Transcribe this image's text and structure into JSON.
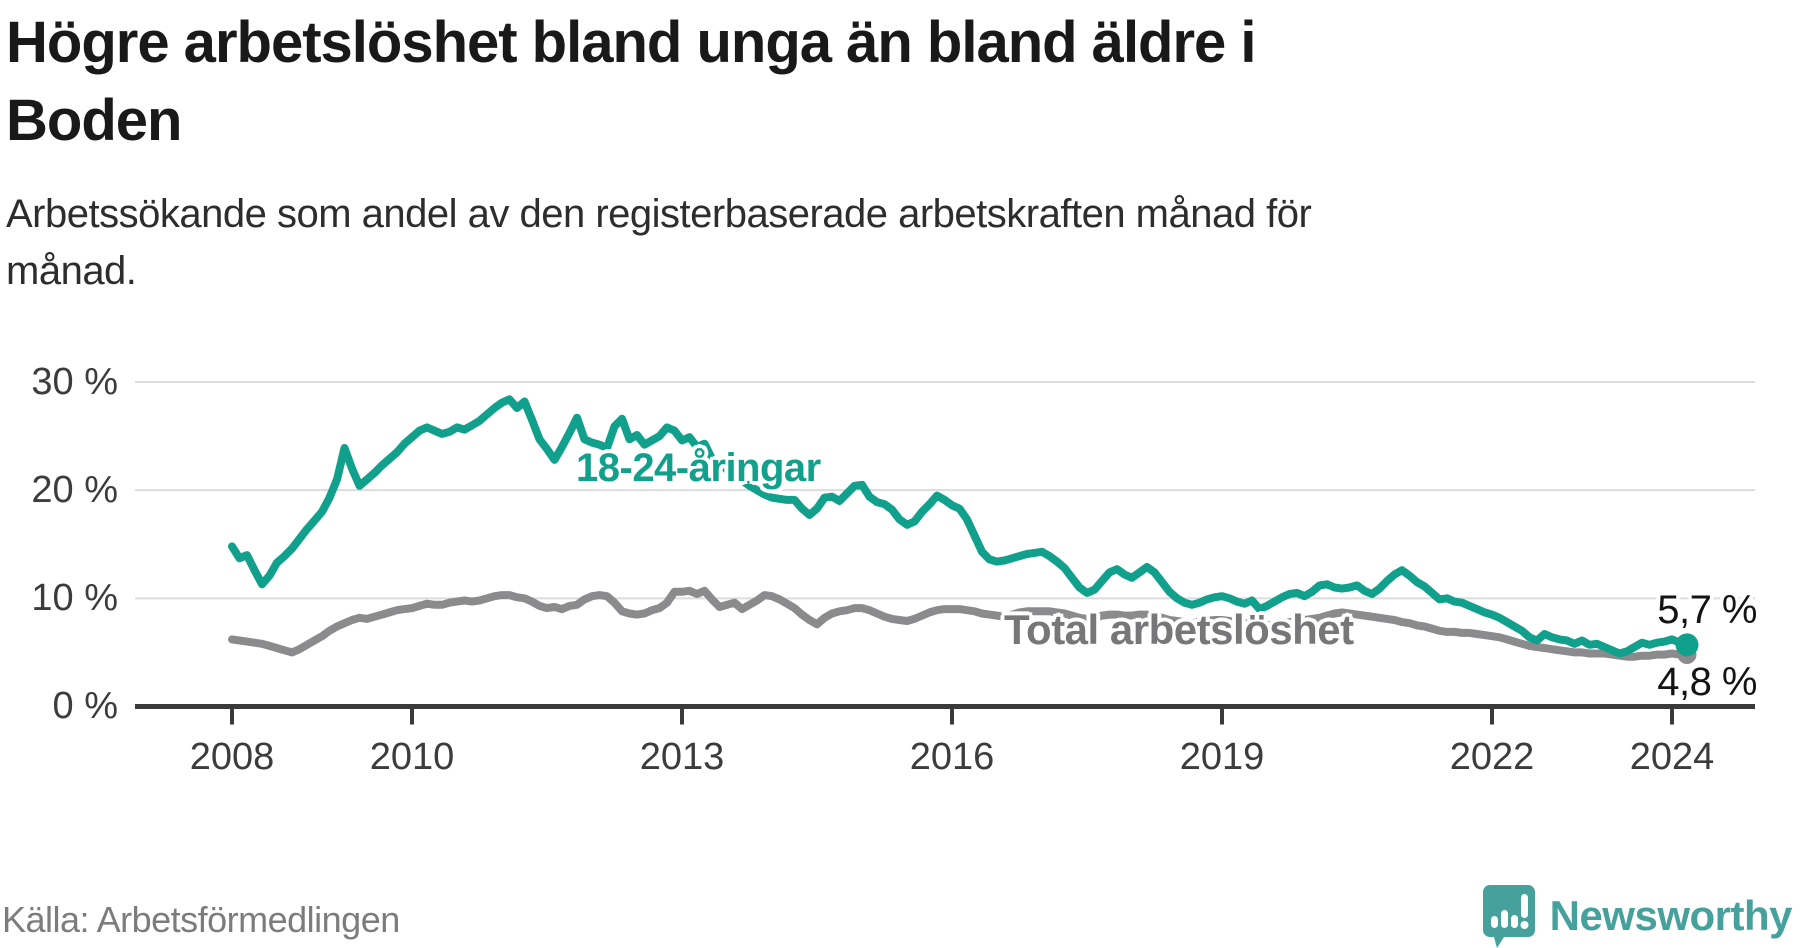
{
  "header": {
    "title": "Högre arbetslöshet bland unga än bland äldre i\nBoden",
    "subtitle": "Arbetssökande som andel av den registerbaserade arbetskraften månad för\nmånad."
  },
  "footer": {
    "source": "Källa: Arbetsförmedlingen",
    "brand": "Newsworthy"
  },
  "colors": {
    "youth_line": "#10a08c",
    "total_line": "#8b8b8d",
    "axis": "#3a3a3a",
    "gridline": "#dcdcdc",
    "brand_teal": "#46a19c"
  },
  "chart_data": {
    "type": "line",
    "title": "Högre arbetslöshet bland unga än bland äldre i Boden",
    "subtitle": "Arbetssökande som andel av den registerbaserade arbetskraften månad för månad.",
    "unit": "%",
    "frequency": "monthly",
    "x_start": "2008-01",
    "x_end": "2024-03",
    "ylim": [
      0,
      32
    ],
    "grid": "horizontal",
    "y_ticks": [
      {
        "label": "30 %",
        "value": 30
      },
      {
        "label": "20 %",
        "value": 20
      },
      {
        "label": "10 %",
        "value": 10
      },
      {
        "label": "0 %",
        "value": 0
      }
    ],
    "x_ticks": [
      {
        "label": "2008",
        "year": 2008
      },
      {
        "label": "2010",
        "year": 2010
      },
      {
        "label": "2013",
        "year": 2013
      },
      {
        "label": "2016",
        "year": 2016
      },
      {
        "label": "2019",
        "year": 2019
      },
      {
        "label": "2022",
        "year": 2022
      },
      {
        "label": "2024",
        "year": 2024
      }
    ],
    "series": [
      {
        "name": "Total arbetslöshet",
        "color": "#8b8b8d",
        "end_label": "4,8 %",
        "end_value": 4.8,
        "values": [
          6.2,
          6.1,
          6.0,
          5.9,
          5.8,
          5.6,
          5.4,
          5.2,
          5.0,
          5.3,
          5.7,
          6.1,
          6.5,
          7.0,
          7.4,
          7.7,
          8.0,
          8.2,
          8.1,
          8.3,
          8.5,
          8.7,
          8.9,
          9.0,
          9.1,
          9.3,
          9.5,
          9.4,
          9.4,
          9.6,
          9.7,
          9.8,
          9.7,
          9.8,
          10.0,
          10.2,
          10.3,
          10.3,
          10.1,
          10.0,
          9.7,
          9.3,
          9.1,
          9.2,
          9.0,
          9.3,
          9.4,
          9.9,
          10.2,
          10.3,
          10.2,
          9.6,
          8.8,
          8.6,
          8.5,
          8.6,
          8.9,
          9.1,
          9.6,
          10.6,
          10.6,
          10.7,
          10.4,
          10.7,
          9.9,
          9.2,
          9.4,
          9.6,
          9.0,
          9.4,
          9.8,
          10.3,
          10.2,
          9.9,
          9.5,
          9.1,
          8.5,
          8.0,
          7.6,
          8.2,
          8.6,
          8.8,
          8.9,
          9.1,
          9.1,
          8.9,
          8.6,
          8.3,
          8.1,
          8.0,
          7.9,
          8.1,
          8.4,
          8.7,
          8.9,
          9.0,
          9.0,
          9.0,
          8.9,
          8.8,
          8.6,
          8.5,
          8.4,
          8.3,
          8.5,
          8.7,
          8.8,
          8.8,
          8.8,
          8.8,
          8.7,
          8.6,
          8.4,
          8.2,
          8.1,
          8.2,
          8.4,
          8.5,
          8.5,
          8.4,
          8.4,
          8.5,
          8.5,
          8.4,
          8.2,
          8.0,
          7.9,
          7.8,
          7.7,
          7.8,
          7.9,
          8.0,
          8.0,
          7.9,
          7.8,
          7.7,
          7.6,
          7.5,
          7.5,
          7.6,
          7.7,
          7.8,
          7.9,
          8.0,
          8.1,
          8.2,
          8.4,
          8.6,
          8.7,
          8.6,
          8.5,
          8.4,
          8.3,
          8.2,
          8.1,
          8.0,
          7.8,
          7.7,
          7.5,
          7.4,
          7.2,
          7.0,
          6.9,
          6.9,
          6.8,
          6.8,
          6.7,
          6.6,
          6.5,
          6.4,
          6.2,
          6.0,
          5.8,
          5.6,
          5.5,
          5.4,
          5.3,
          5.2,
          5.1,
          5.0,
          5.0,
          4.9,
          4.9,
          4.9,
          4.8,
          4.7,
          4.6,
          4.6,
          4.7,
          4.7,
          4.8,
          4.8,
          4.9,
          4.8,
          4.8
        ]
      },
      {
        "name": "18-24-åringar",
        "color": "#10a08c",
        "end_label": "5,7 %",
        "end_value": 5.7,
        "values": [
          14.8,
          13.7,
          14.0,
          12.6,
          11.3,
          12.1,
          13.3,
          13.9,
          14.6,
          15.5,
          16.4,
          17.2,
          18.0,
          19.3,
          21.0,
          23.9,
          22.0,
          20.4,
          21.0,
          21.6,
          22.3,
          22.9,
          23.5,
          24.3,
          24.9,
          25.5,
          25.8,
          25.5,
          25.2,
          25.4,
          25.8,
          25.6,
          26.0,
          26.4,
          27.0,
          27.6,
          28.1,
          28.4,
          27.6,
          28.2,
          26.5,
          24.7,
          23.8,
          22.8,
          24.0,
          25.3,
          26.7,
          24.7,
          24.4,
          24.2,
          23.9,
          25.9,
          26.6,
          24.7,
          25.1,
          24.2,
          24.6,
          25.0,
          25.8,
          25.5,
          24.6,
          24.9,
          24.0,
          24.3,
          22.9,
          22.4,
          21.9,
          21.4,
          20.9,
          20.4,
          20.0,
          19.6,
          19.3,
          19.2,
          19.1,
          19.1,
          18.3,
          17.7,
          18.3,
          19.3,
          19.4,
          19.0,
          19.7,
          20.4,
          20.5,
          19.4,
          18.9,
          18.7,
          18.2,
          17.3,
          16.8,
          17.1,
          18.0,
          18.7,
          19.5,
          19.1,
          18.6,
          18.3,
          17.3,
          15.8,
          14.3,
          13.6,
          13.4,
          13.5,
          13.7,
          13.9,
          14.1,
          14.2,
          14.3,
          13.9,
          13.4,
          12.8,
          11.9,
          11.0,
          10.5,
          10.8,
          11.6,
          12.4,
          12.7,
          12.2,
          11.9,
          12.4,
          12.9,
          12.4,
          11.5,
          10.6,
          10.0,
          9.6,
          9.4,
          9.6,
          9.9,
          10.1,
          10.2,
          10.0,
          9.7,
          9.5,
          9.8,
          9.0,
          9.3,
          9.7,
          10.1,
          10.4,
          10.5,
          10.2,
          10.6,
          11.2,
          11.3,
          11.0,
          10.9,
          11.0,
          11.2,
          10.7,
          10.4,
          10.9,
          11.6,
          12.2,
          12.6,
          12.1,
          11.5,
          11.1,
          10.5,
          9.9,
          10.0,
          9.7,
          9.6,
          9.3,
          9.0,
          8.7,
          8.5,
          8.2,
          7.8,
          7.4,
          7.0,
          6.4,
          6.1,
          6.7,
          6.4,
          6.2,
          6.1,
          5.8,
          6.1,
          5.7,
          5.8,
          5.5,
          5.2,
          4.9,
          5.1,
          5.5,
          5.9,
          5.7,
          5.9,
          6.0,
          6.2,
          5.9,
          5.7
        ]
      }
    ],
    "source": "Källa: Arbetsförmedlingen"
  }
}
